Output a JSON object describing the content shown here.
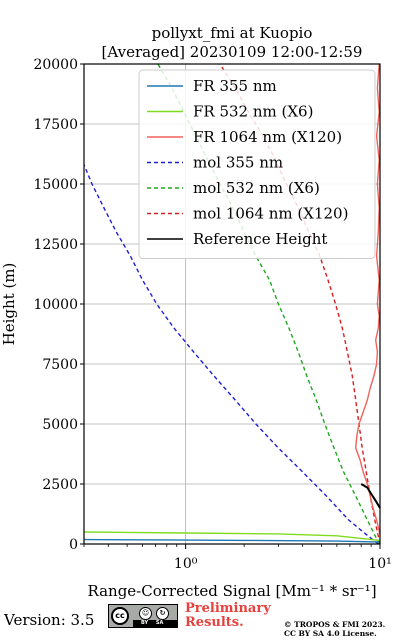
{
  "chart_data": {
    "type": "line",
    "title": "pollyxt_fmi at Kuopio",
    "subtitle": "[Averaged] 20230109 12:00-12:59",
    "xlabel": "Range-Corrected Signal [Mm⁻¹ * sr⁻¹]",
    "ylabel": "Height (m)",
    "xscale": "log",
    "xlim": [
      0.3,
      10
    ],
    "ylim": [
      0,
      20000
    ],
    "xticks": [
      {
        "value": 1,
        "label": "10⁰"
      },
      {
        "value": 10,
        "label": "10¹"
      }
    ],
    "yticks": [
      0,
      2500,
      5000,
      7500,
      10000,
      12500,
      15000,
      17500,
      20000
    ],
    "ytick_labels": [
      "0",
      "2500",
      "5000",
      "7500",
      "10000",
      "12500",
      "15000",
      "17500",
      "20000"
    ],
    "grid": true,
    "legend_position": "top-center",
    "series": [
      {
        "name": "FR 355 nm",
        "color": "#1f77b4",
        "style": "solid",
        "points": [
          [
            10,
            80
          ],
          [
            6,
            120
          ],
          [
            2,
            150
          ],
          [
            0.8,
            170
          ],
          [
            0.4,
            180
          ],
          [
            0.3,
            185
          ]
        ]
      },
      {
        "name": "FR 532 nm (X6)",
        "color": "#7fdc1e",
        "style": "solid",
        "points": [
          [
            10,
            150
          ],
          [
            6,
            340
          ],
          [
            3,
            420
          ],
          [
            1,
            460
          ],
          [
            0.4,
            490
          ],
          [
            0.3,
            500
          ]
        ]
      },
      {
        "name": "FR 1064 nm (X120)",
        "color": "#f0625c",
        "style": "solid",
        "points": [
          [
            10,
            400
          ],
          [
            9.6,
            1000
          ],
          [
            9.2,
            1500
          ],
          [
            8.9,
            2000
          ],
          [
            8.6,
            2500
          ],
          [
            8.2,
            3000
          ],
          [
            7.9,
            3500
          ],
          [
            7.5,
            4000
          ],
          [
            7.6,
            4500
          ],
          [
            7.8,
            5000
          ],
          [
            8.2,
            5500
          ],
          [
            8.6,
            6000
          ],
          [
            8.9,
            6500
          ],
          [
            9.3,
            7000
          ],
          [
            9.6,
            7500
          ],
          [
            9.7,
            8000
          ],
          [
            9.5,
            8500
          ],
          [
            9.8,
            9000
          ],
          [
            9.9,
            9500
          ],
          [
            9.7,
            10000
          ],
          [
            9.9,
            11000
          ],
          [
            9.6,
            12000
          ],
          [
            9.8,
            13000
          ],
          [
            9.9,
            14000
          ],
          [
            9.7,
            15000
          ],
          [
            9.9,
            16000
          ],
          [
            9.6,
            17000
          ],
          [
            9.9,
            18000
          ],
          [
            9.7,
            19000
          ],
          [
            9.9,
            20000
          ]
        ]
      },
      {
        "name": "mol 355 nm",
        "color": "#1f1fd6",
        "style": "dashed",
        "points": [
          [
            9.8,
            0
          ],
          [
            8.2,
            500
          ],
          [
            6.9,
            1000
          ],
          [
            5.3,
            2000
          ],
          [
            4.0,
            3000
          ],
          [
            3.0,
            4000
          ],
          [
            2.3,
            5000
          ],
          [
            1.8,
            6000
          ],
          [
            1.4,
            7000
          ],
          [
            1.1,
            8000
          ],
          [
            0.87,
            9000
          ],
          [
            0.71,
            10000
          ],
          [
            0.6,
            11000
          ],
          [
            0.52,
            12000
          ],
          [
            0.44,
            13000
          ],
          [
            0.38,
            14000
          ],
          [
            0.33,
            15000
          ],
          [
            0.3,
            15800
          ]
        ]
      },
      {
        "name": "mol 532 nm (X6)",
        "color": "#1fa81f",
        "style": "dashed",
        "points": [
          [
            9.9,
            0
          ],
          [
            8.6,
            1000
          ],
          [
            7.5,
            2000
          ],
          [
            6.5,
            3000
          ],
          [
            5.8,
            4000
          ],
          [
            5.2,
            5000
          ],
          [
            4.7,
            6000
          ],
          [
            4.2,
            7000
          ],
          [
            3.8,
            8000
          ],
          [
            3.4,
            9000
          ],
          [
            3.0,
            10000
          ],
          [
            2.7,
            11000
          ],
          [
            2.3,
            12000
          ],
          [
            2.0,
            13000
          ],
          [
            1.75,
            14000
          ],
          [
            1.5,
            15000
          ],
          [
            1.3,
            16000
          ],
          [
            1.13,
            17000
          ],
          [
            0.98,
            18000
          ],
          [
            0.85,
            19000
          ],
          [
            0.72,
            20000
          ]
        ]
      },
      {
        "name": "mol 1064 nm (X120)",
        "color": "#d61f1f",
        "style": "dashed",
        "points": [
          [
            10,
            0
          ],
          [
            9.4,
            1000
          ],
          [
            8.9,
            2000
          ],
          [
            8.5,
            3000
          ],
          [
            8.1,
            4000
          ],
          [
            7.8,
            5000
          ],
          [
            7.5,
            6000
          ],
          [
            7.2,
            7000
          ],
          [
            6.8,
            8000
          ],
          [
            6.4,
            9000
          ],
          [
            5.9,
            10000
          ],
          [
            5.4,
            11000
          ],
          [
            4.9,
            12000
          ],
          [
            4.3,
            13000
          ],
          [
            3.8,
            14000
          ],
          [
            3.3,
            15000
          ],
          [
            2.9,
            16000
          ],
          [
            2.5,
            17000
          ],
          [
            2.1,
            18000
          ],
          [
            1.8,
            19000
          ],
          [
            1.5,
            20000
          ]
        ]
      },
      {
        "name": "Reference Height",
        "color": "#000000",
        "style": "solid",
        "points": [
          [
            8.0,
            2500
          ],
          [
            8.6,
            2350
          ],
          [
            9.0,
            2100
          ],
          [
            9.5,
            1800
          ],
          [
            10,
            1500
          ]
        ]
      }
    ]
  },
  "footer": {
    "version": "Version: 3.5",
    "badge_by": "BY",
    "badge_sa": "SA",
    "preliminary": [
      "Preliminary",
      "Results."
    ],
    "copyright": [
      "© TROPOS & FMI 2023.",
      "CC BY SA 4.0 License."
    ]
  }
}
